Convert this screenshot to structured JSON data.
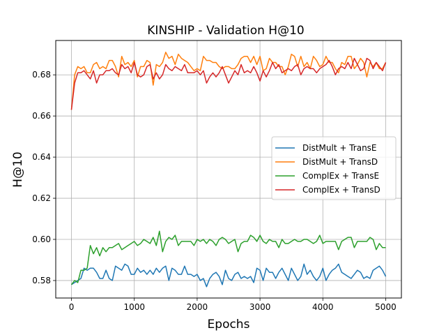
{
  "chart_data": {
    "type": "line",
    "title": "KINSHIP - Validation H@10",
    "xlabel": "Epochs",
    "ylabel": "H@10",
    "xlim": [
      -250,
      5250
    ],
    "ylim": [
      0.5715,
      0.6967
    ],
    "xticks": [
      0,
      1000,
      2000,
      3000,
      4000,
      5000
    ],
    "xtick_labels": [
      "0",
      "1000",
      "2000",
      "3000",
      "4000",
      "5000"
    ],
    "yticks": [
      0.58,
      0.6,
      0.62,
      0.64,
      0.66,
      0.68
    ],
    "ytick_labels": [
      "0.58",
      "0.60",
      "0.62",
      "0.64",
      "0.66",
      "0.68"
    ],
    "grid": true,
    "legend_position": "center-right",
    "x_start": 0,
    "x_step": 50,
    "series": [
      {
        "name": "DistMult + TransE",
        "color": "#1f77b4",
        "values": [
          0.578,
          0.579,
          0.58,
          0.581,
          0.586,
          0.585,
          0.586,
          0.586,
          0.584,
          0.581,
          0.581,
          0.585,
          0.581,
          0.58,
          0.587,
          0.586,
          0.585,
          0.588,
          0.587,
          0.583,
          0.583,
          0.586,
          0.584,
          0.585,
          0.583,
          0.585,
          0.583,
          0.586,
          0.584,
          0.586,
          0.587,
          0.58,
          0.586,
          0.585,
          0.583,
          0.583,
          0.587,
          0.583,
          0.583,
          0.582,
          0.583,
          0.58,
          0.581,
          0.577,
          0.581,
          0.583,
          0.584,
          0.582,
          0.578,
          0.585,
          0.581,
          0.58,
          0.583,
          0.584,
          0.581,
          0.582,
          0.581,
          0.582,
          0.579,
          0.586,
          0.585,
          0.58,
          0.586,
          0.584,
          0.584,
          0.581,
          0.584,
          0.586,
          0.583,
          0.58,
          0.586,
          0.583,
          0.58,
          0.582,
          0.588,
          0.583,
          0.585,
          0.582,
          0.58,
          0.582,
          0.586,
          0.58,
          0.583,
          0.585,
          0.586,
          0.588,
          0.584,
          0.583,
          0.582,
          0.581,
          0.583,
          0.585,
          0.584,
          0.581,
          0.582,
          0.581,
          0.585,
          0.586,
          0.587,
          0.585,
          0.582
        ]
      },
      {
        "name": "DistMult + TransD",
        "color": "#ff7f0e",
        "values": [
          0.663,
          0.68,
          0.684,
          0.683,
          0.684,
          0.681,
          0.681,
          0.685,
          0.686,
          0.683,
          0.684,
          0.683,
          0.687,
          0.687,
          0.684,
          0.679,
          0.689,
          0.685,
          0.686,
          0.684,
          0.687,
          0.679,
          0.684,
          0.684,
          0.687,
          0.686,
          0.675,
          0.685,
          0.684,
          0.686,
          0.691,
          0.688,
          0.689,
          0.685,
          0.69,
          0.688,
          0.687,
          0.686,
          0.684,
          0.682,
          0.683,
          0.682,
          0.689,
          0.687,
          0.687,
          0.686,
          0.686,
          0.684,
          0.683,
          0.684,
          0.684,
          0.683,
          0.683,
          0.685,
          0.688,
          0.689,
          0.689,
          0.686,
          0.689,
          0.685,
          0.689,
          0.682,
          0.683,
          0.688,
          0.686,
          0.686,
          0.684,
          0.684,
          0.68,
          0.684,
          0.69,
          0.689,
          0.684,
          0.689,
          0.684,
          0.686,
          0.683,
          0.689,
          0.687,
          0.684,
          0.685,
          0.689,
          0.686,
          0.686,
          0.683,
          0.681,
          0.686,
          0.685,
          0.689,
          0.689,
          0.683,
          0.685,
          0.688,
          0.686,
          0.679,
          0.686,
          0.684,
          0.686,
          0.683,
          0.683,
          0.686
        ]
      },
      {
        "name": "ComplEx + TransE",
        "color": "#2ca02c",
        "values": [
          0.578,
          0.58,
          0.579,
          0.585,
          0.585,
          0.586,
          0.597,
          0.593,
          0.596,
          0.592,
          0.596,
          0.594,
          0.596,
          0.596,
          0.597,
          0.598,
          0.595,
          0.596,
          0.597,
          0.598,
          0.599,
          0.597,
          0.598,
          0.6,
          0.599,
          0.598,
          0.601,
          0.597,
          0.604,
          0.594,
          0.599,
          0.601,
          0.6,
          0.602,
          0.597,
          0.599,
          0.599,
          0.599,
          0.599,
          0.597,
          0.6,
          0.599,
          0.6,
          0.598,
          0.6,
          0.599,
          0.597,
          0.6,
          0.601,
          0.6,
          0.598,
          0.599,
          0.6,
          0.594,
          0.598,
          0.599,
          0.599,
          0.602,
          0.601,
          0.599,
          0.602,
          0.599,
          0.598,
          0.6,
          0.599,
          0.599,
          0.596,
          0.6,
          0.598,
          0.598,
          0.599,
          0.6,
          0.599,
          0.599,
          0.6,
          0.6,
          0.599,
          0.598,
          0.599,
          0.602,
          0.598,
          0.599,
          0.599,
          0.599,
          0.599,
          0.595,
          0.599,
          0.6,
          0.601,
          0.601,
          0.596,
          0.599,
          0.599,
          0.599,
          0.599,
          0.601,
          0.6,
          0.595,
          0.598,
          0.596,
          0.596
        ]
      },
      {
        "name": "ComplEx + TransD",
        "color": "#d62728",
        "values": [
          0.663,
          0.676,
          0.681,
          0.681,
          0.682,
          0.68,
          0.678,
          0.682,
          0.676,
          0.68,
          0.68,
          0.682,
          0.682,
          0.683,
          0.681,
          0.68,
          0.685,
          0.683,
          0.684,
          0.681,
          0.686,
          0.68,
          0.679,
          0.68,
          0.684,
          0.685,
          0.678,
          0.681,
          0.678,
          0.68,
          0.685,
          0.683,
          0.682,
          0.684,
          0.683,
          0.682,
          0.685,
          0.681,
          0.681,
          0.681,
          0.682,
          0.68,
          0.682,
          0.676,
          0.679,
          0.681,
          0.679,
          0.681,
          0.684,
          0.68,
          0.676,
          0.679,
          0.682,
          0.68,
          0.685,
          0.681,
          0.682,
          0.681,
          0.684,
          0.681,
          0.677,
          0.682,
          0.679,
          0.682,
          0.686,
          0.683,
          0.685,
          0.681,
          0.682,
          0.683,
          0.682,
          0.684,
          0.685,
          0.68,
          0.683,
          0.684,
          0.683,
          0.683,
          0.681,
          0.683,
          0.684,
          0.685,
          0.687,
          0.684,
          0.68,
          0.683,
          0.684,
          0.683,
          0.686,
          0.683,
          0.688,
          0.685,
          0.682,
          0.683,
          0.688,
          0.687,
          0.683,
          0.686,
          0.684,
          0.682,
          0.686
        ]
      }
    ]
  }
}
